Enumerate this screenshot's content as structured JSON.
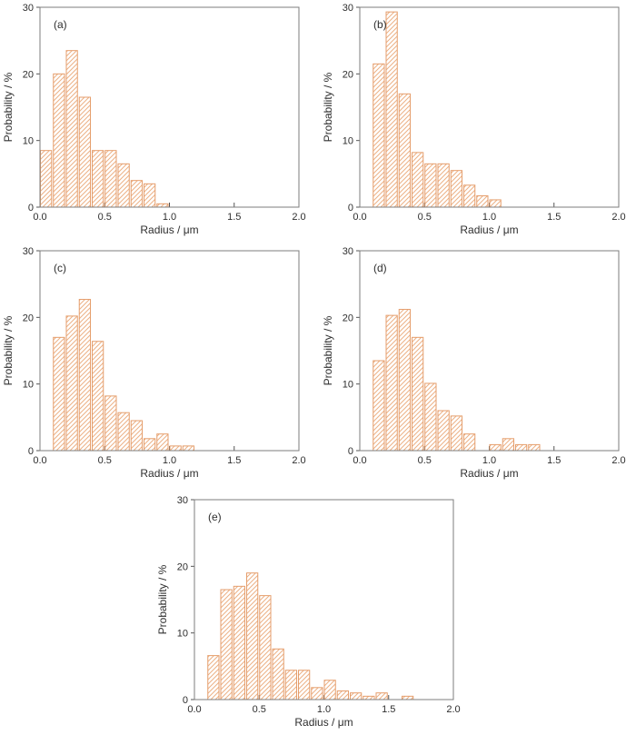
{
  "figure": {
    "background": "#ffffff",
    "bar_edge_color": "#e59e6c",
    "bar_hatch_color": "#ecb185",
    "bar_fill_color": "#ffffff",
    "frame_color": "#7d7d7d",
    "tick_color": "#555555",
    "text_color": "#2e2e2e"
  },
  "chart_data": [
    {
      "id": "a",
      "type": "bar",
      "panel_label": "(a)",
      "xlabel": "Radius / μm",
      "ylabel": "Probability / %",
      "xlim": [
        0.0,
        2.0
      ],
      "ylim": [
        0,
        30
      ],
      "xticks": [
        0.0,
        0.5,
        1.0,
        1.5,
        2.0
      ],
      "yticks": [
        0,
        10,
        20,
        30
      ],
      "grid": false,
      "legend": "none",
      "hatch": "/",
      "bin_width": 0.1,
      "bin_start": 0.0,
      "values": [
        8.5,
        20.0,
        23.5,
        16.5,
        8.5,
        8.5,
        6.5,
        4.0,
        3.5,
        0.5
      ]
    },
    {
      "id": "b",
      "type": "bar",
      "panel_label": "(b)",
      "xlabel": "Radius / μm",
      "ylabel": "Probability / %",
      "xlim": [
        0.0,
        2.0
      ],
      "ylim": [
        0,
        30
      ],
      "xticks": [
        0.0,
        0.5,
        1.0,
        1.5,
        2.0
      ],
      "yticks": [
        0,
        10,
        20,
        30
      ],
      "grid": false,
      "legend": "none",
      "hatch": "/",
      "bin_width": 0.1,
      "bin_start": 0.1,
      "values": [
        21.5,
        29.3,
        17.0,
        8.2,
        6.5,
        6.5,
        5.5,
        3.3,
        1.7,
        1.1
      ]
    },
    {
      "id": "c",
      "type": "bar",
      "panel_label": "(c)",
      "xlabel": "Radius / μm",
      "ylabel": "Probability / %",
      "xlim": [
        0.0,
        2.0
      ],
      "ylim": [
        0,
        30
      ],
      "xticks": [
        0.0,
        0.5,
        1.0,
        1.5,
        2.0
      ],
      "yticks": [
        0,
        10,
        20,
        30
      ],
      "grid": false,
      "legend": "none",
      "hatch": "/",
      "bin_width": 0.1,
      "bin_start": 0.1,
      "values": [
        17.0,
        20.2,
        22.7,
        16.4,
        8.2,
        5.7,
        4.5,
        1.8,
        2.5,
        0.7,
        0.7
      ]
    },
    {
      "id": "d",
      "type": "bar",
      "panel_label": "(d)",
      "xlabel": "Radius / μm",
      "ylabel": "Probability / %",
      "xlim": [
        0.0,
        2.0
      ],
      "ylim": [
        0,
        30
      ],
      "xticks": [
        0.0,
        0.5,
        1.0,
        1.5,
        2.0
      ],
      "yticks": [
        0,
        10,
        20,
        30
      ],
      "grid": false,
      "legend": "none",
      "hatch": "/",
      "bin_width": 0.1,
      "bin_start": 0.1,
      "values": [
        13.5,
        20.3,
        21.2,
        17.0,
        10.1,
        6.0,
        5.2,
        2.5,
        0,
        0.9,
        1.8,
        0.9,
        0.9
      ]
    },
    {
      "id": "e",
      "type": "bar",
      "panel_label": "(e)",
      "xlabel": "Radius / μm",
      "ylabel": "Probability / %",
      "xlim": [
        0.0,
        2.0
      ],
      "ylim": [
        0,
        30
      ],
      "xticks": [
        0.0,
        0.5,
        1.0,
        1.5,
        2.0
      ],
      "yticks": [
        0,
        10,
        20,
        30
      ],
      "grid": false,
      "legend": "none",
      "hatch": "/",
      "bin_width": 0.1,
      "bin_start": 0.1,
      "values": [
        6.6,
        16.5,
        17.0,
        19.0,
        15.6,
        7.6,
        4.4,
        4.4,
        1.8,
        2.9,
        1.3,
        1.0,
        0.5,
        1.0,
        0,
        0.5
      ]
    }
  ]
}
